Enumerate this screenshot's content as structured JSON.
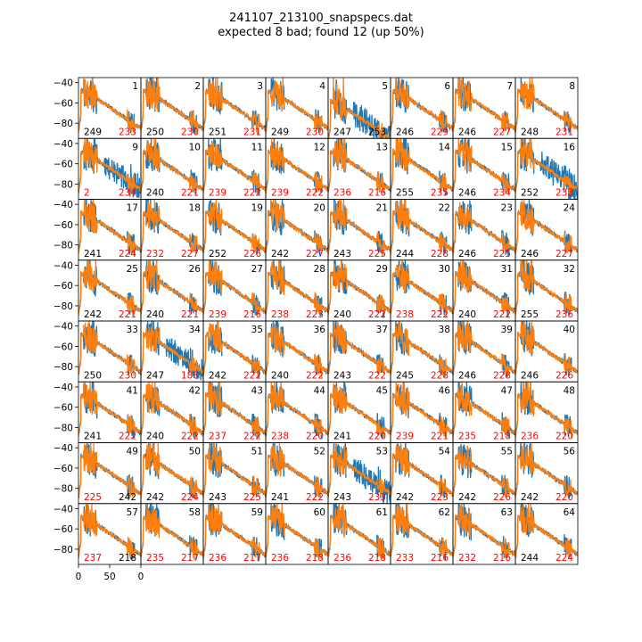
{
  "chart_data": {
    "type": "line",
    "title": "241107_213100_snapspecs.dat",
    "subtitle": "expected 8 bad; found 12 (up 50%)",
    "xlabel": "",
    "ylabel": "",
    "xlim": [
      0,
      100
    ],
    "ylim": [
      -95,
      -35
    ],
    "x_ticks": [
      "0",
      "50",
      "0"
    ],
    "y_ticks": [
      "-40",
      "-60",
      "-80"
    ],
    "grid": false,
    "rows": 8,
    "cols": 8,
    "colors": {
      "blue": "#1f77b4",
      "orange": "#ff7f0e",
      "red": "#ff0000",
      "black": "#000000"
    },
    "panels": [
      {
        "id": "1",
        "left": "249",
        "right": "233",
        "left_color": "black",
        "right_color": "red"
      },
      {
        "id": "2",
        "left": "250",
        "right": "230",
        "left_color": "black",
        "right_color": "red"
      },
      {
        "id": "3",
        "left": "251",
        "right": "231",
        "left_color": "black",
        "right_color": "red"
      },
      {
        "id": "4",
        "left": "249",
        "right": "230",
        "left_color": "black",
        "right_color": "red"
      },
      {
        "id": "5",
        "left": "247",
        "right": "253",
        "left_color": "black",
        "right_color": "black"
      },
      {
        "id": "6",
        "left": "246",
        "right": "229",
        "left_color": "black",
        "right_color": "red"
      },
      {
        "id": "7",
        "left": "246",
        "right": "227",
        "left_color": "black",
        "right_color": "red"
      },
      {
        "id": "8",
        "left": "248",
        "right": "231",
        "left_color": "black",
        "right_color": "red"
      },
      {
        "id": "9",
        "left": "2",
        "right": "234",
        "left_color": "red",
        "right_color": "red"
      },
      {
        "id": "10",
        "left": "240",
        "right": "221",
        "left_color": "black",
        "right_color": "red"
      },
      {
        "id": "11",
        "left": "239",
        "right": "222",
        "left_color": "red",
        "right_color": "red"
      },
      {
        "id": "12",
        "left": "239",
        "right": "222",
        "left_color": "red",
        "right_color": "red"
      },
      {
        "id": "13",
        "left": "236",
        "right": "216",
        "left_color": "red",
        "right_color": "red"
      },
      {
        "id": "14",
        "left": "255",
        "right": "235",
        "left_color": "black",
        "right_color": "red"
      },
      {
        "id": "15",
        "left": "246",
        "right": "234",
        "left_color": "black",
        "right_color": "red"
      },
      {
        "id": "16",
        "left": "252",
        "right": "233",
        "left_color": "black",
        "right_color": "red"
      },
      {
        "id": "17",
        "left": "241",
        "right": "224",
        "left_color": "black",
        "right_color": "red"
      },
      {
        "id": "18",
        "left": "232",
        "right": "227",
        "left_color": "red",
        "right_color": "red"
      },
      {
        "id": "19",
        "left": "252",
        "right": "226",
        "left_color": "black",
        "right_color": "red"
      },
      {
        "id": "20",
        "left": "242",
        "right": "227",
        "left_color": "black",
        "right_color": "red"
      },
      {
        "id": "21",
        "left": "243",
        "right": "225",
        "left_color": "black",
        "right_color": "red"
      },
      {
        "id": "22",
        "left": "244",
        "right": "228",
        "left_color": "black",
        "right_color": "red"
      },
      {
        "id": "23",
        "left": "246",
        "right": "225",
        "left_color": "black",
        "right_color": "red"
      },
      {
        "id": "24",
        "left": "246",
        "right": "227",
        "left_color": "black",
        "right_color": "red"
      },
      {
        "id": "25",
        "left": "242",
        "right": "221",
        "left_color": "black",
        "right_color": "red"
      },
      {
        "id": "26",
        "left": "240",
        "right": "221",
        "left_color": "black",
        "right_color": "red"
      },
      {
        "id": "27",
        "left": "239",
        "right": "216",
        "left_color": "red",
        "right_color": "red"
      },
      {
        "id": "28",
        "left": "238",
        "right": "223",
        "left_color": "red",
        "right_color": "red"
      },
      {
        "id": "29",
        "left": "240",
        "right": "222",
        "left_color": "black",
        "right_color": "red"
      },
      {
        "id": "30",
        "left": "238",
        "right": "222",
        "left_color": "red",
        "right_color": "red"
      },
      {
        "id": "31",
        "left": "240",
        "right": "222",
        "left_color": "black",
        "right_color": "red"
      },
      {
        "id": "32",
        "left": "255",
        "right": "236",
        "left_color": "black",
        "right_color": "red"
      },
      {
        "id": "33",
        "left": "250",
        "right": "230",
        "left_color": "black",
        "right_color": "red"
      },
      {
        "id": "34",
        "left": "247",
        "right": "188",
        "left_color": "black",
        "right_color": "red"
      },
      {
        "id": "35",
        "left": "242",
        "right": "222",
        "left_color": "black",
        "right_color": "red"
      },
      {
        "id": "36",
        "left": "240",
        "right": "222",
        "left_color": "black",
        "right_color": "red"
      },
      {
        "id": "37",
        "left": "243",
        "right": "222",
        "left_color": "black",
        "right_color": "red"
      },
      {
        "id": "38",
        "left": "245",
        "right": "228",
        "left_color": "black",
        "right_color": "red"
      },
      {
        "id": "39",
        "left": "246",
        "right": "228",
        "left_color": "black",
        "right_color": "red"
      },
      {
        "id": "40",
        "left": "246",
        "right": "226",
        "left_color": "black",
        "right_color": "red"
      },
      {
        "id": "41",
        "left": "241",
        "right": "222",
        "left_color": "black",
        "right_color": "red"
      },
      {
        "id": "42",
        "left": "240",
        "right": "222",
        "left_color": "black",
        "right_color": "red"
      },
      {
        "id": "43",
        "left": "237",
        "right": "222",
        "left_color": "red",
        "right_color": "red"
      },
      {
        "id": "44",
        "left": "238",
        "right": "220",
        "left_color": "red",
        "right_color": "red"
      },
      {
        "id": "45",
        "left": "241",
        "right": "220",
        "left_color": "black",
        "right_color": "red"
      },
      {
        "id": "46",
        "left": "239",
        "right": "221",
        "left_color": "red",
        "right_color": "red"
      },
      {
        "id": "47",
        "left": "235",
        "right": "218",
        "left_color": "red",
        "right_color": "red"
      },
      {
        "id": "48",
        "left": "236",
        "right": "220",
        "left_color": "red",
        "right_color": "red"
      },
      {
        "id": "49",
        "left": "225",
        "right": "242",
        "left_color": "red",
        "right_color": "black"
      },
      {
        "id": "50",
        "left": "242",
        "right": "224",
        "left_color": "black",
        "right_color": "red"
      },
      {
        "id": "51",
        "left": "243",
        "right": "225",
        "left_color": "black",
        "right_color": "red"
      },
      {
        "id": "52",
        "left": "241",
        "right": "222",
        "left_color": "black",
        "right_color": "red"
      },
      {
        "id": "53",
        "left": "243",
        "right": "233",
        "left_color": "black",
        "right_color": "red"
      },
      {
        "id": "54",
        "left": "242",
        "right": "223",
        "left_color": "black",
        "right_color": "red"
      },
      {
        "id": "55",
        "left": "242",
        "right": "226",
        "left_color": "black",
        "right_color": "red"
      },
      {
        "id": "56",
        "left": "242",
        "right": "220",
        "left_color": "black",
        "right_color": "red"
      },
      {
        "id": "57",
        "left": "237",
        "right": "218",
        "left_color": "red",
        "right_color": "black"
      },
      {
        "id": "58",
        "left": "235",
        "right": "217",
        "left_color": "red",
        "right_color": "red"
      },
      {
        "id": "59",
        "left": "236",
        "right": "217",
        "left_color": "red",
        "right_color": "red"
      },
      {
        "id": "60",
        "left": "236",
        "right": "218",
        "left_color": "red",
        "right_color": "red"
      },
      {
        "id": "61",
        "left": "236",
        "right": "218",
        "left_color": "red",
        "right_color": "red"
      },
      {
        "id": "62",
        "left": "233",
        "right": "216",
        "left_color": "red",
        "right_color": "red"
      },
      {
        "id": "63",
        "left": "232",
        "right": "216",
        "left_color": "red",
        "right_color": "red"
      },
      {
        "id": "64",
        "left": "244",
        "right": "224",
        "left_color": "black",
        "right_color": "red"
      }
    ]
  }
}
